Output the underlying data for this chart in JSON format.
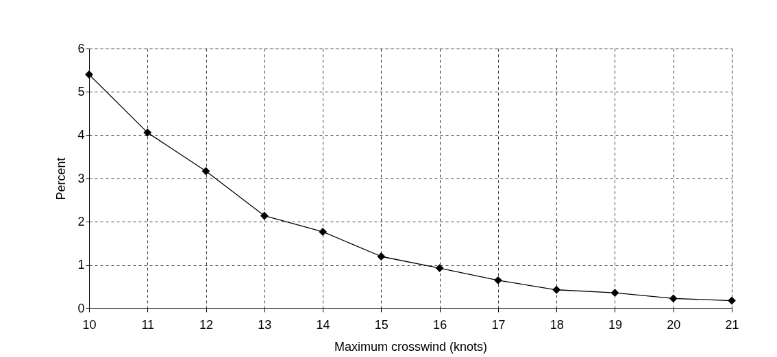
{
  "chart_data": {
    "type": "line",
    "xlabel": "Maximum crosswind (knots)",
    "ylabel": "Percent",
    "x": [
      10,
      11,
      12,
      13,
      14,
      15,
      16,
      17,
      18,
      19,
      20,
      21
    ],
    "series": [
      {
        "color": "#000000",
        "values": [
          5.4,
          4.06,
          3.17,
          2.14,
          1.77,
          1.2,
          0.93,
          0.65,
          0.43,
          0.36,
          0.23,
          0.18
        ]
      }
    ],
    "xlim": [
      10,
      21
    ],
    "xticks": [
      10,
      11,
      12,
      13,
      14,
      15,
      16,
      17,
      18,
      19,
      20,
      21
    ],
    "ylim": [
      0,
      6
    ],
    "yticks": [
      0,
      1,
      2,
      3,
      4,
      5,
      6
    ],
    "grid": true,
    "marker": "diamond",
    "line_style": "solid"
  }
}
